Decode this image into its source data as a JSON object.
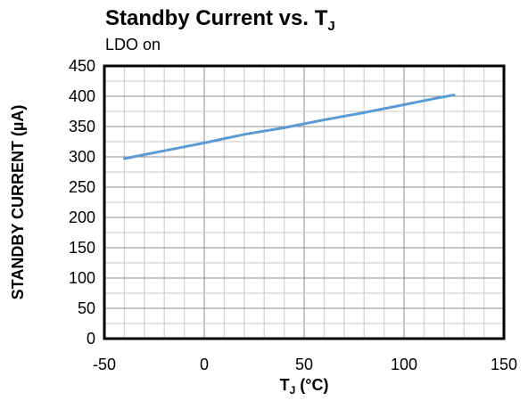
{
  "chart_data": {
    "type": "line",
    "title_main": "Standby Current vs. T",
    "title_sub": "J",
    "subtitle": "LDO on",
    "xlabel_main": "T",
    "xlabel_sub": "J",
    "xlabel_unit": " (°C)",
    "ylabel": "STANDBY CURRENT (µA)",
    "xlim": [
      -50,
      150
    ],
    "ylim": [
      0,
      450
    ],
    "x_ticks": [
      -50,
      0,
      50,
      100,
      150
    ],
    "y_ticks": [
      0,
      50,
      100,
      150,
      200,
      250,
      300,
      350,
      400,
      450
    ],
    "x_minor_step": 10,
    "y_minor_step": 25,
    "grid": true,
    "series": [
      {
        "color": "#5b9bd5",
        "x": [
          -40,
          -20,
          0,
          20,
          40,
          60,
          80,
          100,
          115,
          125
        ],
        "y": [
          297,
          310,
          323,
          337,
          348,
          361,
          373,
          386,
          396,
          402
        ]
      }
    ]
  }
}
